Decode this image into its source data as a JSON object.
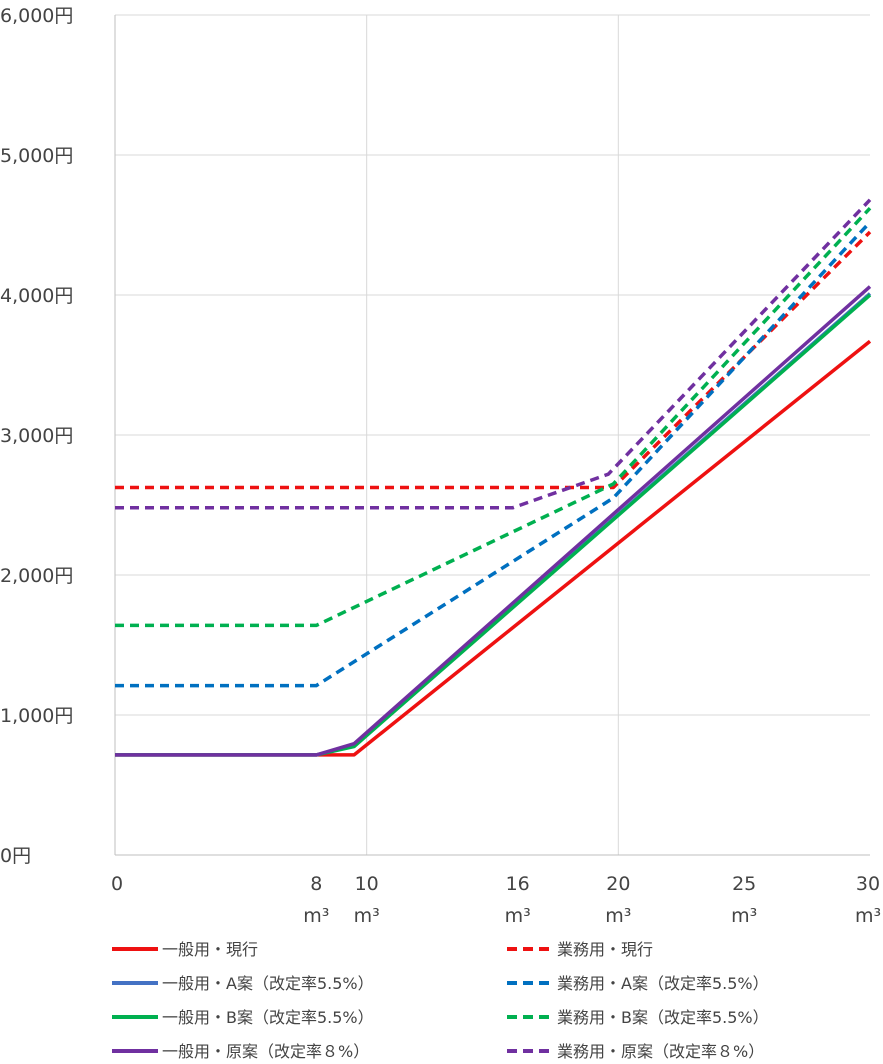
{
  "chart_data": {
    "type": "line",
    "title": "",
    "xlabel": "",
    "ylabel": "",
    "xlim": [
      0,
      30
    ],
    "ylim": [
      0,
      6000
    ],
    "grid": true,
    "legend_position": "bottom",
    "y_ticks": [
      {
        "value": 0,
        "label": "0円"
      },
      {
        "value": 1000,
        "label": "1,000円"
      },
      {
        "value": 2000,
        "label": "2,000円"
      },
      {
        "value": 3000,
        "label": "3,000円"
      },
      {
        "value": 4000,
        "label": "4,000円"
      },
      {
        "value": 5000,
        "label": "5,000円"
      },
      {
        "value": 6000,
        "label": "6,000円"
      }
    ],
    "x_ticks": [
      {
        "value": 0,
        "label": "0",
        "unit": ""
      },
      {
        "value": 8,
        "label": "8",
        "unit": "m³"
      },
      {
        "value": 10,
        "label": "10",
        "unit": "m³"
      },
      {
        "value": 16,
        "label": "16",
        "unit": "m³"
      },
      {
        "value": 20,
        "label": "20",
        "unit": "m³"
      },
      {
        "value": 25,
        "label": "25",
        "unit": "m³"
      },
      {
        "value": 30,
        "label": "30",
        "unit": "m³"
      }
    ],
    "x_gridlines": [
      10,
      20
    ],
    "series": [
      {
        "name": "一般用・現行",
        "color": "#ee1111",
        "dashed": false,
        "points": [
          [
            0,
            715
          ],
          [
            8,
            715
          ],
          [
            9.5,
            715
          ],
          [
            30,
            3670
          ]
        ]
      },
      {
        "name": "業務用・現行",
        "color": "#ee1111",
        "dashed": true,
        "points": [
          [
            0,
            2625
          ],
          [
            19.8,
            2625
          ],
          [
            30,
            4450
          ]
        ]
      },
      {
        "name": "一般用・A案（改定率5.5%）",
        "color": "#4472c4",
        "dashed": false,
        "points": [
          [
            0,
            715
          ],
          [
            8,
            715
          ],
          [
            9.5,
            780
          ],
          [
            30,
            4010
          ]
        ]
      },
      {
        "name": "業務用・A案（改定率5.5%）",
        "color": "#0070c0",
        "dashed": true,
        "points": [
          [
            0,
            1210
          ],
          [
            8,
            1210
          ],
          [
            19.8,
            2550
          ],
          [
            30,
            4520
          ]
        ]
      },
      {
        "name": "一般用・B案（改定率5.5%）",
        "color": "#00b050",
        "dashed": false,
        "points": [
          [
            0,
            715
          ],
          [
            8,
            715
          ],
          [
            9.5,
            775
          ],
          [
            30,
            4000
          ]
        ]
      },
      {
        "name": "業務用・B案（改定率5.5%）",
        "color": "#00b050",
        "dashed": true,
        "points": [
          [
            0,
            1640
          ],
          [
            8,
            1640
          ],
          [
            19.8,
            2650
          ],
          [
            30,
            4620
          ]
        ]
      },
      {
        "name": "一般用・原案（改定率８%）",
        "color": "#7030a0",
        "dashed": false,
        "points": [
          [
            0,
            715
          ],
          [
            8,
            715
          ],
          [
            9.5,
            795
          ],
          [
            30,
            4060
          ]
        ]
      },
      {
        "name": "業務用・原案（改定率８%）",
        "color": "#7030a0",
        "dashed": true,
        "points": [
          [
            0,
            2480
          ],
          [
            15.8,
            2480
          ],
          [
            19.6,
            2720
          ],
          [
            30,
            4680
          ]
        ]
      }
    ]
  }
}
